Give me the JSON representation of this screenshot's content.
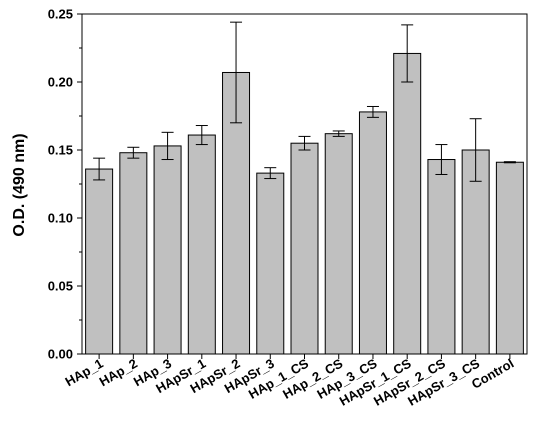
{
  "chart_data": {
    "type": "bar",
    "title": "",
    "xlabel": "",
    "ylabel": "O.D. (490 nm)",
    "ylim": [
      0,
      0.25
    ],
    "yticks": [
      "0.00",
      "0.05",
      "0.10",
      "0.15",
      "0.20",
      "0.25"
    ],
    "grid": false,
    "legend": "none",
    "bar_color": "#c0c0c0",
    "bar_edge_color": "#000000",
    "categories": [
      "HAp_1",
      "HAp_2",
      "HAp_3",
      "HApSr_1",
      "HApSr_2",
      "HApSr_3",
      "HAp_1_CS",
      "HAp_2_CS",
      "HAp_3_CS",
      "HApSr_1_CS",
      "HApSr_2_CS",
      "HApSr_3_CS",
      "Control"
    ],
    "values": [
      0.136,
      0.148,
      0.153,
      0.161,
      0.207,
      0.133,
      0.155,
      0.162,
      0.178,
      0.221,
      0.143,
      0.15,
      0.141
    ],
    "errors": [
      0.008,
      0.004,
      0.01,
      0.007,
      0.037,
      0.004,
      0.005,
      0.002,
      0.004,
      0.021,
      0.011,
      0.023,
      0.0004
    ]
  }
}
